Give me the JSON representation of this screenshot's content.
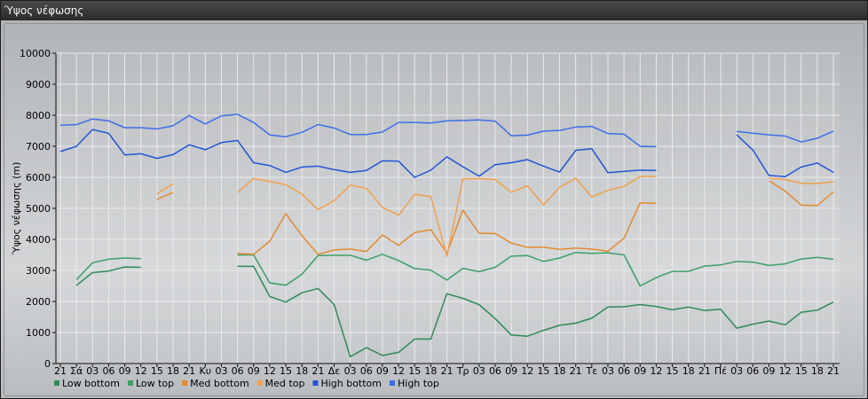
{
  "window": {
    "title": "Ύψος νέφωσης"
  },
  "chart_data": {
    "type": "line",
    "title": "",
    "ylabel": "Ύψος νέφωσης (m)",
    "xlabel": "",
    "ylim": [
      0,
      10000
    ],
    "yticks": [
      0,
      1000,
      2000,
      3000,
      4000,
      5000,
      6000,
      7000,
      8000,
      9000,
      10000
    ],
    "grid": true,
    "legend_position": "bottom-left",
    "categories": [
      "21",
      "Σά",
      "03",
      "06",
      "09",
      "12",
      "15",
      "18",
      "21",
      "Κυ",
      "03",
      "06",
      "09",
      "12",
      "15",
      "18",
      "21",
      "Δε",
      "03",
      "06",
      "09",
      "12",
      "15",
      "18",
      "21",
      "Τρ",
      "03",
      "06",
      "09",
      "12",
      "15",
      "18",
      "21",
      "Τε",
      "03",
      "06",
      "09",
      "12",
      "15",
      "18",
      "21",
      "Πέ",
      "03",
      "06",
      "09",
      "12",
      "15",
      "18",
      "21"
    ],
    "series": [
      {
        "name": "Low bottom",
        "color": "#2e8b57",
        "values": [
          null,
          2520,
          2930,
          2980,
          3110,
          3100,
          null,
          null,
          null,
          null,
          null,
          3130,
          3130,
          2160,
          1980,
          2280,
          2420,
          1900,
          220,
          510,
          260,
          360,
          790,
          790,
          2250,
          2100,
          1900,
          1450,
          920,
          880,
          1070,
          1230,
          1300,
          1460,
          1820,
          1830,
          1900,
          1840,
          1730,
          1820,
          1710,
          1750,
          1140,
          1270,
          1370,
          1250,
          1650,
          1720,
          1980
        ]
      },
      {
        "name": "Low top",
        "color": "#3c9f66",
        "values": [
          null,
          2700,
          3250,
          3360,
          3400,
          3380,
          null,
          null,
          null,
          null,
          null,
          3500,
          3500,
          2600,
          2520,
          2880,
          3480,
          3490,
          3490,
          3330,
          3520,
          3320,
          3060,
          3010,
          2690,
          3070,
          2960,
          3100,
          3460,
          3480,
          3290,
          3400,
          3580,
          3550,
          3570,
          3500,
          2500,
          2770,
          2970,
          2970,
          3140,
          3180,
          3290,
          3270,
          3160,
          3210,
          3370,
          3420,
          3360
        ]
      },
      {
        "name": "Med bottom",
        "color": "#e38a2e",
        "values": [
          null,
          null,
          null,
          null,
          null,
          null,
          5290,
          5510,
          null,
          null,
          null,
          3550,
          3520,
          3940,
          4830,
          4120,
          3520,
          3660,
          3690,
          3610,
          4140,
          3810,
          4220,
          4310,
          3560,
          4940,
          4200,
          4190,
          3880,
          3750,
          3750,
          3680,
          3720,
          3690,
          3620,
          4040,
          5180,
          5160,
          null,
          null,
          null,
          null,
          null,
          null,
          5890,
          5560,
          5110,
          5090,
          5530
        ]
      },
      {
        "name": "Med top",
        "color": "#f0a04a",
        "values": [
          null,
          null,
          null,
          null,
          null,
          null,
          5470,
          5790,
          null,
          null,
          null,
          5510,
          5960,
          5870,
          5760,
          5460,
          4960,
          5250,
          5750,
          5650,
          5030,
          4780,
          5450,
          5380,
          3460,
          5950,
          5960,
          5930,
          5520,
          5730,
          5110,
          5680,
          5970,
          5370,
          5580,
          5710,
          6030,
          6030,
          null,
          null,
          null,
          null,
          null,
          null,
          5980,
          5930,
          5810,
          5800,
          5860
        ]
      },
      {
        "name": "High bottom",
        "color": "#2255d4",
        "values": [
          6830,
          7000,
          7540,
          7420,
          6720,
          6760,
          6610,
          6730,
          7050,
          6890,
          7120,
          7190,
          6470,
          6380,
          6160,
          6330,
          6360,
          6250,
          6160,
          6220,
          6530,
          6520,
          6000,
          6230,
          6660,
          6340,
          6040,
          6410,
          6470,
          6570,
          6360,
          6170,
          6870,
          6920,
          6150,
          6190,
          6230,
          6220,
          null,
          null,
          null,
          null,
          7370,
          6880,
          6060,
          6020,
          6330,
          6460,
          6160
        ]
      },
      {
        "name": "High top",
        "color": "#3d6ee8",
        "values": [
          7680,
          7700,
          7880,
          7820,
          7600,
          7600,
          7560,
          7660,
          7990,
          7720,
          7980,
          8030,
          7770,
          7370,
          7310,
          7450,
          7700,
          7590,
          7380,
          7380,
          7460,
          7770,
          7770,
          7750,
          7820,
          7830,
          7850,
          7810,
          7340,
          7360,
          7490,
          7510,
          7620,
          7640,
          7410,
          7390,
          7000,
          6990,
          null,
          null,
          null,
          null,
          7480,
          7420,
          7370,
          7330,
          7140,
          7260,
          7490
        ]
      }
    ]
  }
}
